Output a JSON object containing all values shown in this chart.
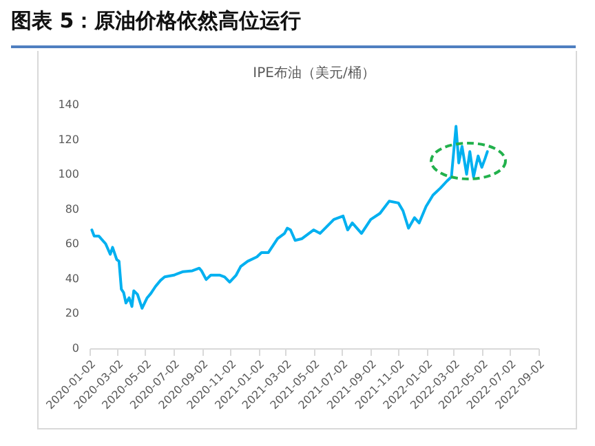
{
  "chart_data": {
    "type": "line",
    "title": "图表 5：原油价格依然高位运行",
    "subtitle": "IPE布油（美元/桶）",
    "xlim": [
      "2020-01-02",
      "2022-09-02"
    ],
    "xticks": [
      "2020-01-02",
      "2020-03-02",
      "2020-05-02",
      "2020-07-02",
      "2020-09-02",
      "2020-11-02",
      "2021-01-02",
      "2021-03-02",
      "2021-05-02",
      "2021-07-02",
      "2021-09-02",
      "2021-11-02",
      "2022-01-02",
      "2022-03-02",
      "2022-05-02",
      "2022-07-02",
      "2022-09-02"
    ],
    "ylim": [
      0,
      140
    ],
    "yticks": [
      0,
      20,
      40,
      60,
      80,
      100,
      120,
      140
    ],
    "series": [
      {
        "color": "#00b0f0",
        "x": [
          "2020-01-07",
          "2020-01-12",
          "2020-01-22",
          "2020-02-06",
          "2020-02-16",
          "2020-02-21",
          "2020-03-01",
          "2020-03-06",
          "2020-03-11",
          "2020-03-16",
          "2020-03-21",
          "2020-03-28",
          "2020-04-03",
          "2020-04-07",
          "2020-04-15",
          "2020-04-25",
          "2020-05-06",
          "2020-05-14",
          "2020-05-24",
          "2020-06-04",
          "2020-06-13",
          "2020-07-03",
          "2020-07-23",
          "2020-08-12",
          "2020-08-27",
          "2020-09-01",
          "2020-09-11",
          "2020-09-21",
          "2020-10-11",
          "2020-10-21",
          "2020-11-01",
          "2020-11-15",
          "2020-11-25",
          "2020-12-10",
          "2020-12-30",
          "2021-01-09",
          "2021-01-24",
          "2021-02-13",
          "2021-02-28",
          "2021-03-06",
          "2021-03-13",
          "2021-03-23",
          "2021-04-07",
          "2021-04-22",
          "2021-05-02",
          "2021-05-16",
          "2021-06-15",
          "2021-07-05",
          "2021-07-15",
          "2021-07-25",
          "2021-08-14",
          "2021-09-03",
          "2021-09-23",
          "2021-10-13",
          "2021-11-02",
          "2021-11-12",
          "2021-11-24",
          "2021-12-07",
          "2021-12-17",
          "2022-01-01",
          "2022-01-16",
          "2022-02-01",
          "2022-02-15",
          "2022-02-25",
          "2022-03-07",
          "2022-03-13",
          "2022-03-20",
          "2022-03-30",
          "2022-04-06",
          "2022-04-14",
          "2022-04-24",
          "2022-05-02",
          "2022-05-09",
          "2022-05-14"
        ],
        "values": [
          68,
          64.5,
          64.5,
          60,
          54,
          58,
          51,
          50,
          34,
          32,
          26,
          29,
          24,
          33,
          31,
          23,
          29,
          31.5,
          35.5,
          39,
          41,
          42,
          44,
          44.5,
          46,
          44.5,
          39.5,
          42,
          42,
          41,
          38,
          42,
          47,
          50,
          52.5,
          55,
          55,
          63,
          66,
          69,
          68,
          62,
          63,
          66,
          68,
          66,
          74,
          76,
          68,
          72,
          66,
          74,
          77.5,
          84.5,
          83.5,
          79,
          69,
          75,
          72,
          81.5,
          88,
          92,
          96,
          98.5,
          127.5,
          106.5,
          116,
          100,
          113,
          98.5,
          110.5,
          104,
          109,
          113
        ]
      }
    ]
  }
}
